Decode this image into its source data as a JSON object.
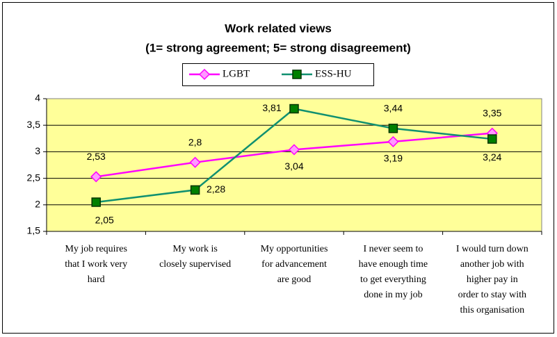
{
  "chart_data": {
    "type": "line",
    "title": "Work related views",
    "subtitle": "(1= strong agreement; 5= strong disagreement)",
    "categories": [
      "My job requires\nthat I work very\nhard",
      "My work is\nclosely supervised",
      "My opportunities\nfor advancement\nare good",
      "I never seem to\nhave enough time\nto get everything\ndone in my job",
      "I would turn down\nanother job with\nhigher pay in\norder to stay with\nthis organisation"
    ],
    "series": [
      {
        "name": "LGBT",
        "color": "#ff00ff",
        "marker_color": "#ff99ff",
        "values": [
          2.53,
          2.8,
          3.04,
          3.19,
          3.35
        ],
        "value_labels": [
          "2,53",
          "2,8",
          "3,04",
          "3,19",
          "3,35"
        ]
      },
      {
        "name": "ESS-HU",
        "color": "#109070",
        "marker_color": "#008000",
        "values": [
          2.05,
          2.28,
          3.81,
          3.44,
          3.24
        ],
        "value_labels": [
          "2,05",
          "2,28",
          "3,81",
          "3,44",
          "3,24"
        ]
      }
    ],
    "ylim": [
      1.5,
      4
    ],
    "yticks": [
      {
        "value": 1.5,
        "label": "1,5"
      },
      2,
      {
        "value": 2.5,
        "label": "2,5"
      },
      3,
      {
        "value": 3.5,
        "label": "3,5"
      },
      4
    ],
    "grid": true,
    "legend": "top"
  }
}
